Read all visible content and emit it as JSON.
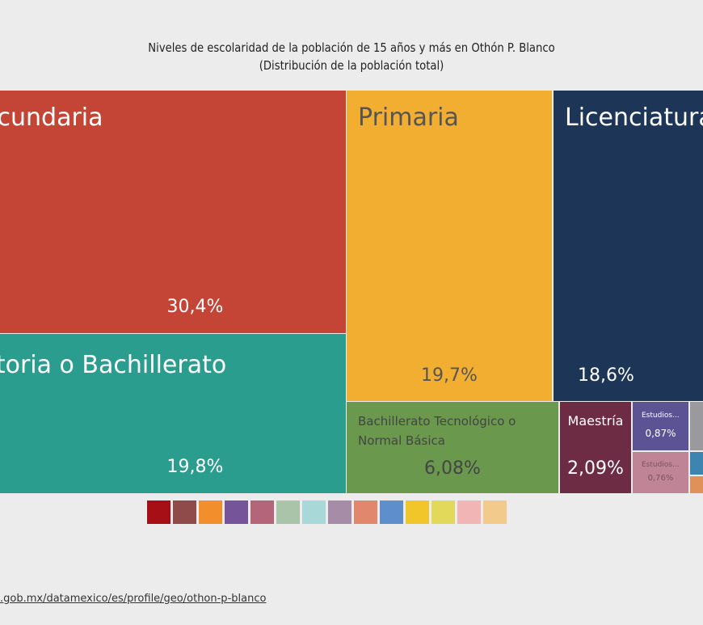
{
  "title": "Niveles de escolaridad de la población de 15 años y más en Othón P. Blanco",
  "subtitle": "(Distribución de la población total)",
  "chart_data": {
    "type": "treemap",
    "title": "Niveles de escolaridad de la población de 15 años y más en Othón P. Blanco",
    "subtitle": "(Distribución de la población total)",
    "items": [
      {
        "label": "Secundaria",
        "value_label": "30,4%",
        "value": 30.4,
        "color": "#c44536"
      },
      {
        "label": "Preparatoria o Bachillerato General",
        "value_label": "19,8%",
        "value": 19.8,
        "color": "#2a9d8f"
      },
      {
        "label": "Primaria",
        "value_label": "19,7%",
        "value": 19.7,
        "color": "#f2ae30"
      },
      {
        "label": "Licenciatura",
        "value_label": "18,6%",
        "value": 18.6,
        "color": "#1d3557"
      },
      {
        "label": "Bachillerato Tecnológico o Normal Básica",
        "value_label": "6,08%",
        "value": 6.08,
        "color": "#6a994e"
      },
      {
        "label": "Maestría",
        "value_label": "2,09%",
        "value": 2.09,
        "color": "#6d2c43"
      },
      {
        "label": "Estudios...",
        "value_label": "0,87%",
        "value": 0.87,
        "color": "#5c5394"
      },
      {
        "label": "Estudios...",
        "value_label": "0,76%",
        "value": 0.76,
        "color": "#c08497"
      }
    ],
    "other_colors": [
      "#9a9a9e",
      "#3d85b0",
      "#e0915a"
    ],
    "legend_colors": [
      "#a50f15",
      "#8f4a4a",
      "#f28e2b",
      "#76549a",
      "#b5657a",
      "#a9c4a9",
      "#a8d8d8",
      "#a78ca8",
      "#e0876e",
      "#5e8ecb",
      "#f0c62a",
      "#e2d95a",
      "#f2b5b5",
      "#f2cb8c"
    ]
  },
  "source": ".gob.mx/datamexico/es/profile/geo/othon-p-blanco"
}
